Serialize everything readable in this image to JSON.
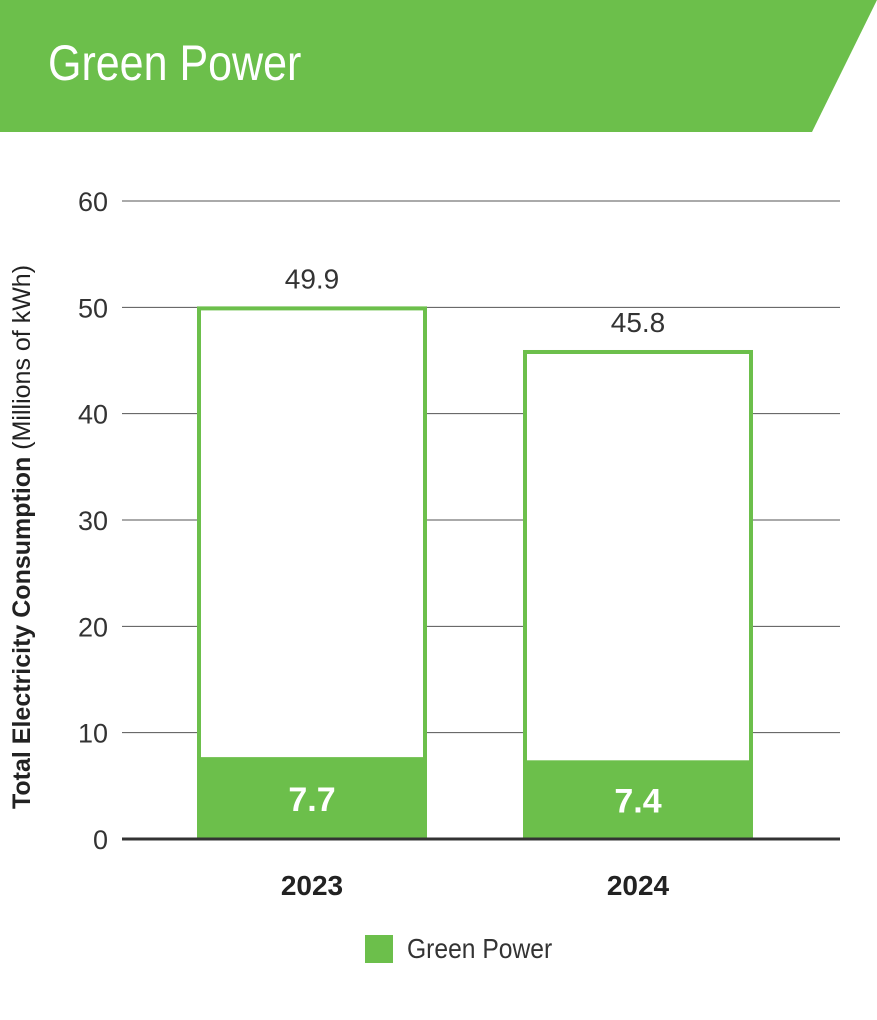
{
  "header": {
    "title": "Green Power"
  },
  "colors": {
    "green": "#6cbf4b",
    "grid": "#555555",
    "text": "#333333"
  },
  "chart_data": {
    "type": "bar",
    "stacked": true,
    "categories": [
      "2023",
      "2024"
    ],
    "series": [
      {
        "name": "Green Power",
        "values": [
          7.7,
          7.4
        ]
      }
    ],
    "totals": [
      49.9,
      45.8
    ],
    "total_labels": [
      "49.9",
      "45.8"
    ],
    "green_labels": [
      "7.7",
      "7.4"
    ],
    "ylabel_bold": "Total Electricity Consumption",
    "ylabel_rest": " (Millions of kWh)",
    "ylim": [
      0,
      60
    ],
    "yticks": [
      0,
      10,
      20,
      30,
      40,
      50,
      60
    ],
    "grid": true,
    "legend_position": "bottom"
  }
}
